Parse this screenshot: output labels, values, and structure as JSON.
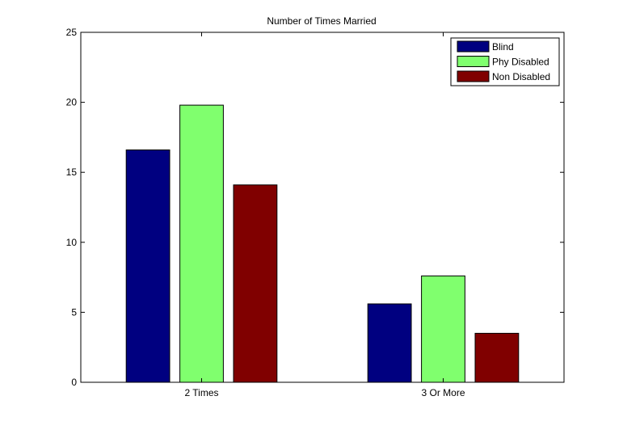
{
  "chart_data": {
    "type": "bar",
    "title": "Number of Times Married",
    "xlabel": "",
    "ylabel": "",
    "categories": [
      "2 Times",
      "3 Or More"
    ],
    "series": [
      {
        "name": "Blind",
        "values": [
          16.6,
          5.6
        ],
        "color": "#000080"
      },
      {
        "name": "Phy Disabled",
        "values": [
          19.8,
          7.6
        ],
        "color": "#80ff6e"
      },
      {
        "name": "Non Disabled",
        "values": [
          14.1,
          3.5
        ],
        "color": "#800000"
      }
    ],
    "ylim": [
      0,
      25
    ],
    "yticks": [
      0,
      5,
      10,
      15,
      20,
      25
    ],
    "ytick_labels": [
      "0",
      "5",
      "10",
      "15",
      "20",
      "25"
    ],
    "grid": false,
    "legend_position": "top-right"
  }
}
